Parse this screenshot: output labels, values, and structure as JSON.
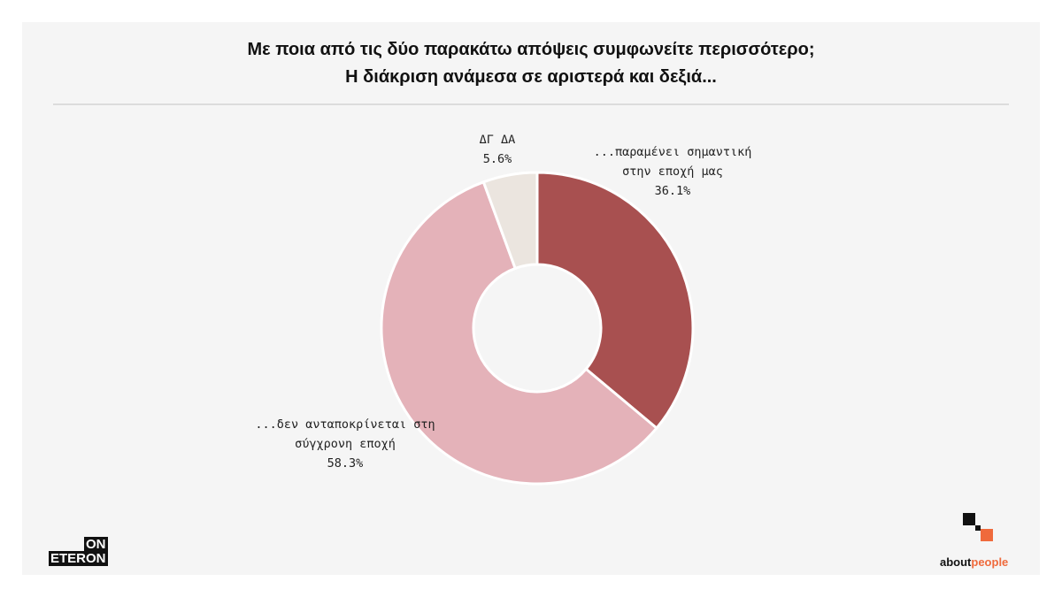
{
  "chart_data": {
    "type": "donut",
    "title": [
      "Με ποια από τις δύο παρακάτω απόψεις συμφωνείτε περισσότερο;",
      "Η διάκριση ανάμεσα σε αριστερά και δεξιά..."
    ],
    "categories": [
      "...παραμένει σημαντική στην εποχή μας",
      "...δεν ανταποκρίνεται στη σύγχρονη εποχή",
      "ΔΓ ΔΑ"
    ],
    "values": [
      36.1,
      58.3,
      5.6
    ],
    "value_labels": [
      "36.1%",
      "58.3%",
      "5.6%"
    ],
    "colors": [
      "#a85050",
      "#e4b2b9",
      "#ebe5df"
    ]
  },
  "logos": {
    "left": [
      "ON",
      "ETERON"
    ],
    "right": [
      "about",
      "people"
    ]
  }
}
